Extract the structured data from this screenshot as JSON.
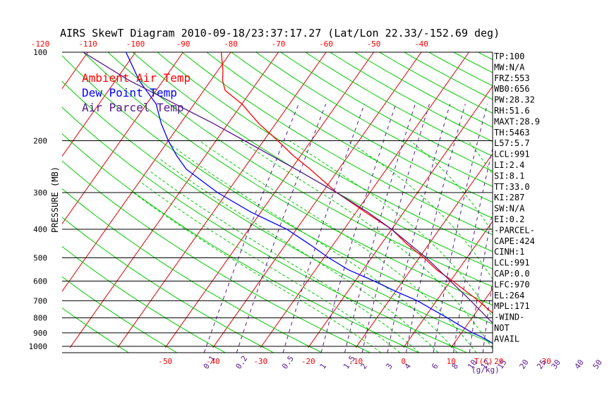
{
  "chart_data": {
    "type": "line",
    "title": "AIRS SkewT Diagram 2010-09-18/23:37:17.27 (Lat/Lon 22.33/-152.69 deg)",
    "ylabel": "PRESSURE (MB)",
    "xlabel_bottom": "T(C)",
    "mixing_ratio_unit": "(g/kg)",
    "colors": {
      "temp": "#ff0000",
      "dew": "#0000ff",
      "parcel": "#551a8b",
      "dry_adiabat": "#00cc00",
      "moist_adiabat": "#00cc00",
      "isotherm": "#dd0000",
      "mixing": "#551a8b",
      "isobar": "#000000"
    },
    "pressure_ticks": [
      100,
      200,
      300,
      400,
      500,
      600,
      700,
      800,
      900,
      1000
    ],
    "top_temp_ticks": [
      -120,
      -110,
      -100,
      -90,
      -80,
      -70,
      -60,
      -50,
      -40
    ],
    "bottom_temp_ticks": [
      -50,
      -40,
      -30,
      -20,
      -10,
      0,
      10,
      20,
      30
    ],
    "mixing_ratio_labels": [
      "0.1",
      "0.2",
      "0.5",
      "1",
      "1.5",
      "2",
      "3",
      "4",
      "6",
      "8",
      "10",
      "12",
      "15",
      "20",
      "25",
      "30",
      "40",
      "50"
    ],
    "legend": [
      {
        "label": "Ambient Air Temp",
        "color": "#ff0000"
      },
      {
        "label": "Dew Point Temp",
        "color": "#0000ff"
      },
      {
        "label": "Air Parcel Temp",
        "color": "#551a8b"
      }
    ],
    "indices": [
      "TP:100",
      "MW:N/A",
      "FRZ:553",
      "WB0:656",
      "PW:28.32",
      "RH:51.6",
      "MAXT:28.9",
      "TH:5463",
      "L57:5.7",
      "LCL:991",
      "LI:2.4",
      "SI:8.1",
      "TT:33.0",
      "KI:287",
      "SW:N/A",
      "EI:0.2",
      "-PARCEL-",
      "CAPE:424",
      "CINH:1",
      "LCL:991",
      "CAP:0.0",
      "LFC:970",
      "EL:264",
      "MPL:171",
      "-WIND-",
      "NOT",
      "AVAIL"
    ],
    "temperature_profile": [
      {
        "p": 1010,
        "t": 25.5
      },
      {
        "p": 995,
        "t": 23.5
      },
      {
        "p": 975,
        "t": 21.7
      },
      {
        "p": 950,
        "t": 20.5
      },
      {
        "p": 925,
        "t": 20.3
      },
      {
        "p": 900,
        "t": 19.9
      },
      {
        "p": 880,
        "t": 19.4
      },
      {
        "p": 850,
        "t": 18.2
      },
      {
        "p": 800,
        "t": 15.5
      },
      {
        "p": 750,
        "t": 12.2
      },
      {
        "p": 700,
        "t": 8.8
      },
      {
        "p": 650,
        "t": 4.8
      },
      {
        "p": 600,
        "t": 0.5
      },
      {
        "p": 550,
        "t": -4.5
      },
      {
        "p": 500,
        "t": -9.0
      },
      {
        "p": 450,
        "t": -14.5
      },
      {
        "p": 400,
        "t": -20.0
      },
      {
        "p": 350,
        "t": -28.0
      },
      {
        "p": 300,
        "t": -37.0
      },
      {
        "p": 250,
        "t": -46.0
      },
      {
        "p": 225,
        "t": -51.5
      },
      {
        "p": 200,
        "t": -57.0
      },
      {
        "p": 175,
        "t": -63.5
      },
      {
        "p": 150,
        "t": -70.0
      },
      {
        "p": 135,
        "t": -75.5
      },
      {
        "p": 125,
        "t": -77.5
      },
      {
        "p": 115,
        "t": -79.0
      },
      {
        "p": 100,
        "t": -82.0
      }
    ],
    "dewpoint_profile": [
      {
        "p": 1010,
        "td": 20.5
      },
      {
        "p": 995,
        "td": 19.5
      },
      {
        "p": 975,
        "td": 18.0
      },
      {
        "p": 950,
        "td": 16.3
      },
      {
        "p": 925,
        "td": 14.5
      },
      {
        "p": 900,
        "td": 12.3
      },
      {
        "p": 850,
        "td": 8.6
      },
      {
        "p": 800,
        "td": 4.8
      },
      {
        "p": 750,
        "td": 0.5
      },
      {
        "p": 700,
        "td": -4.0
      },
      {
        "p": 650,
        "td": -10.0
      },
      {
        "p": 600,
        "td": -16.0
      },
      {
        "p": 550,
        "td": -23.0
      },
      {
        "p": 500,
        "td": -29.0
      },
      {
        "p": 450,
        "td": -35.0
      },
      {
        "p": 400,
        "td": -42.0
      },
      {
        "p": 350,
        "td": -52.0
      },
      {
        "p": 300,
        "td": -62.0
      },
      {
        "p": 250,
        "td": -72.0
      },
      {
        "p": 225,
        "td": -76.0
      },
      {
        "p": 200,
        "td": -80.0
      },
      {
        "p": 175,
        "td": -84.0
      },
      {
        "p": 150,
        "td": -88.0
      },
      {
        "p": 125,
        "td": -95.0
      },
      {
        "p": 100,
        "td": -102.0
      }
    ],
    "parcel_profile": [
      {
        "p": 1010,
        "t": 24.5
      },
      {
        "p": 990,
        "t": 22.8
      },
      {
        "p": 950,
        "t": 20.8
      },
      {
        "p": 900,
        "t": 18.5
      },
      {
        "p": 850,
        "t": 16.0
      },
      {
        "p": 800,
        "t": 13.2
      },
      {
        "p": 700,
        "t": 7.2
      },
      {
        "p": 600,
        "t": 0.0
      },
      {
        "p": 500,
        "t": -8.5
      },
      {
        "p": 400,
        "t": -20.0
      },
      {
        "p": 350,
        "t": -27.5
      },
      {
        "p": 300,
        "t": -37.0
      },
      {
        "p": 250,
        "t": -49.0
      },
      {
        "p": 200,
        "t": -64.0
      },
      {
        "p": 175,
        "t": -73.0
      },
      {
        "p": 150,
        "t": -84.0
      },
      {
        "p": 125,
        "t": -97.0
      },
      {
        "p": 100,
        "t": -111.0
      }
    ]
  }
}
